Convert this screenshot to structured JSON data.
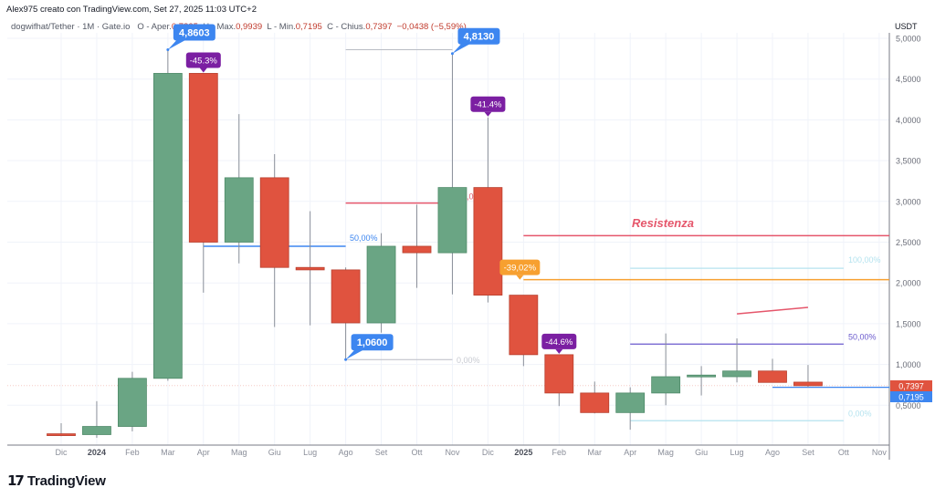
{
  "header": {
    "credit": "Alex975 creato con TradingView.com, Set 27, 2025 11:03 UTC+2",
    "symbol": "dogwifhat/Tether · 1M · Gate.io",
    "open_label": "O - Aper.",
    "open_value": "0,7835",
    "high_label": "H - Max.",
    "high_value": "0,9939",
    "low_label": "L - Min.",
    "low_value": "0,7195",
    "close_label": "C - Chius.",
    "close_value": "0,7397",
    "change": "−0,0438 (−5,59%)"
  },
  "price_axis": {
    "unit": "USDT",
    "ticks": [
      "5,0000",
      "4,5000",
      "4,0000",
      "3,5000",
      "3,0000",
      "2,5000",
      "2,0000",
      "1,5000",
      "1,0000",
      "0,5000"
    ],
    "last_price_label": "0,7397",
    "last_price_color": "#e0533f",
    "low_price_label": "0,7195",
    "low_price_color": "#3d86f0"
  },
  "time_axis": {
    "labels": [
      "Dic",
      "2024",
      "Feb",
      "Mar",
      "Apr",
      "Mag",
      "Giu",
      "Lug",
      "Ago",
      "Set",
      "Ott",
      "Nov",
      "Dic",
      "2025",
      "Feb",
      "Mar",
      "Apr",
      "Mag",
      "Giu",
      "Lug",
      "Ago",
      "Set",
      "Ott",
      "Nov"
    ],
    "bold": [
      "2024",
      "2025"
    ]
  },
  "annotations": {
    "high1": "4,8603",
    "high2": "4,8130",
    "low1": "1,0600",
    "drop1": "-45.3%",
    "drop2": "-41.4%",
    "drop3": "-44.6%",
    "drop_orange": "-39,02%",
    "resistance_label": "Resistenza",
    "fib_left_50": "50,00%",
    "fib_left_0": "0,00%",
    "fib_left_100_partial": ",0",
    "fib_right_100": "100,00%",
    "fib_right_50": "50,00%",
    "fib_right_0": "0,00%"
  },
  "colors": {
    "up": "#6aa584",
    "down": "#e0533f",
    "wick": "#8a8f99",
    "blue_label": "#3d86f0",
    "purple_label": "#7b1fa2",
    "orange": "#f7a030",
    "resistance": "#e5566b",
    "grid": "#f0f3fa"
  },
  "branding": {
    "logo_text": "TradingView"
  },
  "chart_data": {
    "type": "candlestick",
    "title": "dogwifhat/Tether · 1M · Gate.io",
    "xlabel": "",
    "ylabel": "USDT",
    "ylim": [
      0,
      5.2
    ],
    "grid": true,
    "categories": [
      "2023-12",
      "2024-01",
      "2024-02",
      "2024-03",
      "2024-04",
      "2024-05",
      "2024-06",
      "2024-07",
      "2024-08",
      "2024-09",
      "2024-10",
      "2024-11",
      "2024-12",
      "2025-01",
      "2025-02",
      "2025-03",
      "2025-04",
      "2025-05",
      "2025-06",
      "2025-07",
      "2025-08",
      "2025-09"
    ],
    "open": [
      0.15,
      0.14,
      0.24,
      0.83,
      4.57,
      2.5,
      3.29,
      2.19,
      2.16,
      1.51,
      2.45,
      2.37,
      3.17,
      1.85,
      1.12,
      0.65,
      0.41,
      0.65,
      0.85,
      0.85,
      0.92,
      0.7835
    ],
    "high": [
      0.28,
      0.55,
      0.91,
      4.86,
      4.57,
      4.07,
      3.58,
      2.88,
      2.19,
      2.61,
      2.96,
      4.813,
      4.03,
      1.85,
      1.12,
      0.79,
      0.72,
      1.38,
      0.98,
      1.32,
      1.07,
      0.9939
    ],
    "low": [
      0.12,
      0.1,
      0.18,
      0.8,
      1.88,
      2.24,
      1.46,
      1.48,
      1.06,
      1.39,
      1.94,
      1.86,
      1.76,
      0.98,
      0.49,
      0.4,
      0.2,
      0.5,
      0.62,
      0.78,
      0.78,
      0.7195
    ],
    "close": [
      0.13,
      0.24,
      0.83,
      4.57,
      2.5,
      3.29,
      2.19,
      2.16,
      1.51,
      2.45,
      2.37,
      3.17,
      1.85,
      1.12,
      0.65,
      0.41,
      0.65,
      0.85,
      0.87,
      0.92,
      0.78,
      0.7397
    ],
    "annotations": [
      {
        "type": "price_label",
        "x": "2024-03",
        "y": 4.8603,
        "text": "4,8603"
      },
      {
        "type": "price_label",
        "x": "2024-11",
        "y": 4.813,
        "text": "4,8130"
      },
      {
        "type": "price_label",
        "x": "2024-08",
        "y": 1.06,
        "text": "1,0600"
      },
      {
        "type": "callout",
        "x": "2024-04",
        "text": "-45.3%"
      },
      {
        "type": "callout",
        "x": "2024-12",
        "text": "-41.4%"
      },
      {
        "type": "callout",
        "x": "2025-02",
        "text": "-44.6%"
      },
      {
        "type": "callout",
        "x": "2025-01",
        "text": "-39,02%"
      },
      {
        "type": "hline",
        "y": 2.58,
        "from": "2025-01",
        "text": "Resistenza"
      },
      {
        "type": "hline",
        "y": 2.04,
        "from": "2025-01",
        "color": "orange"
      },
      {
        "type": "hline",
        "y": 2.98,
        "from": "2024-08",
        "to": "2024-11",
        "color": "red"
      },
      {
        "type": "fib",
        "levels": {
          "50,00%": 2.45,
          "0,00%": 1.06
        },
        "from": "2024-04",
        "to": "2024-11"
      },
      {
        "type": "fib",
        "levels": {
          "100,00%": 2.18,
          "50,00%": 1.25,
          "0,00%": 0.31
        },
        "from": "2025-04",
        "to": "2025-10"
      },
      {
        "type": "trendline",
        "from": [
          "2025-07",
          1.62
        ],
        "to": [
          "2025-09",
          1.7
        ]
      }
    ]
  }
}
